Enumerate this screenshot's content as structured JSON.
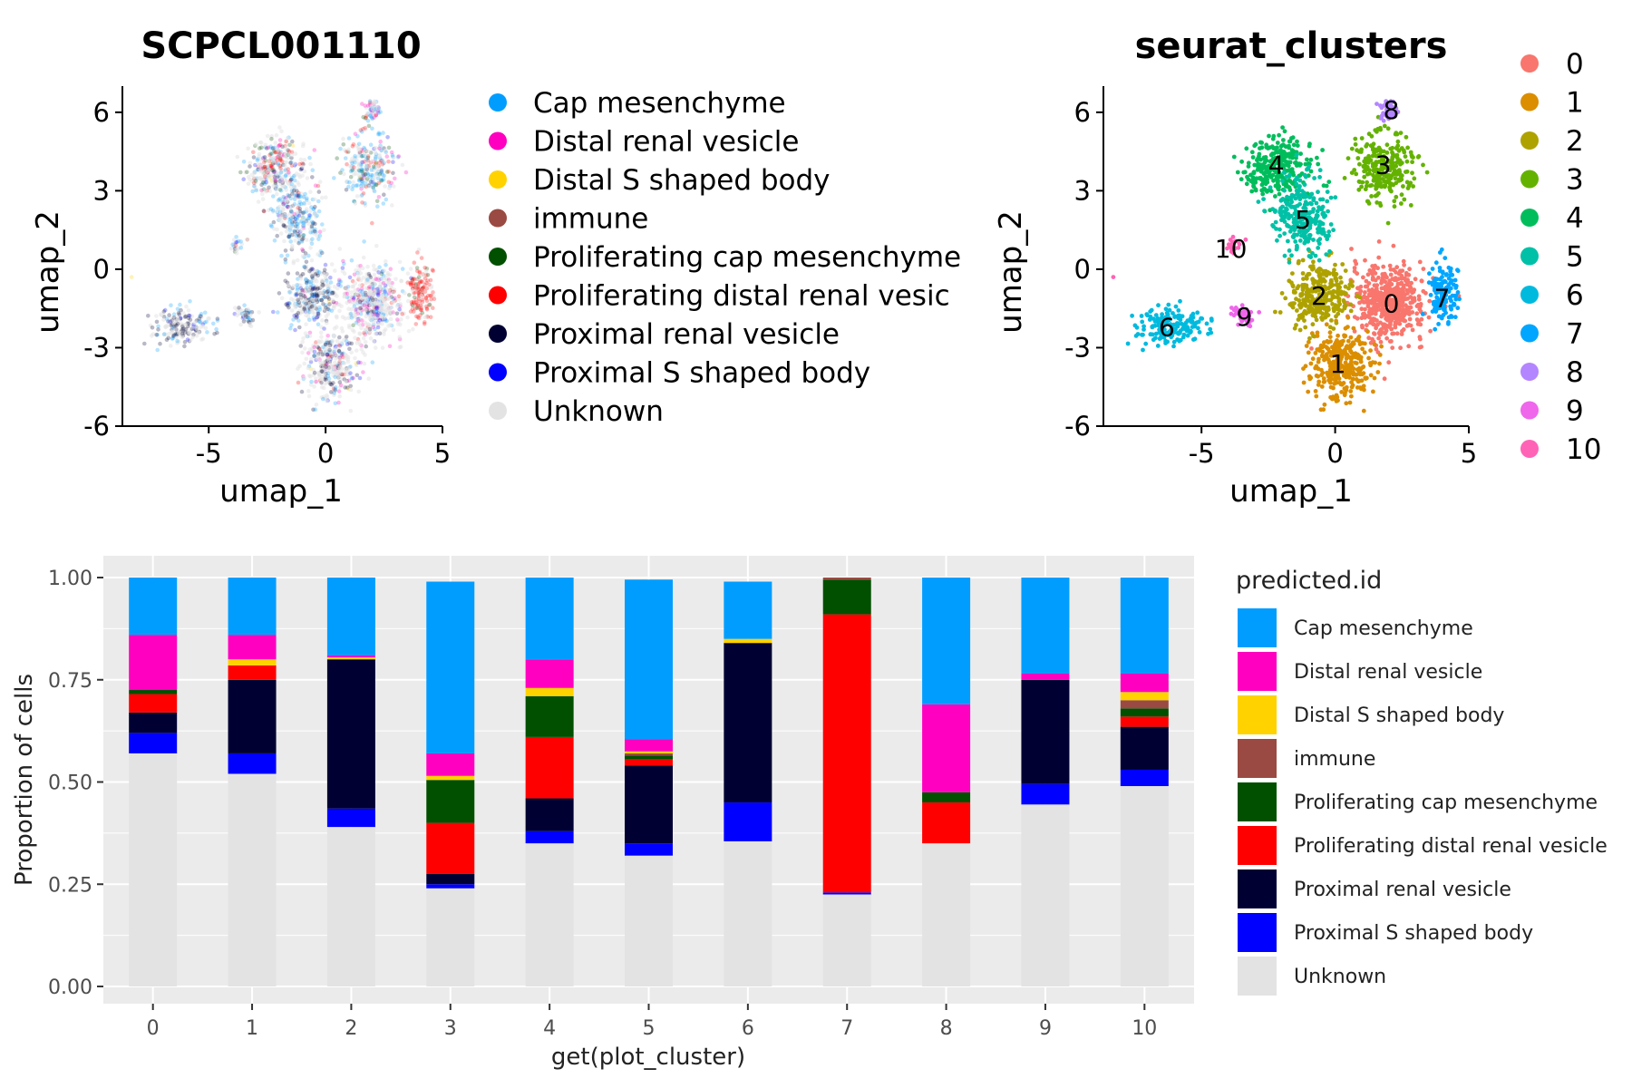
{
  "colors": {
    "Cap mesenchyme": "#009dff",
    "Distal renal vesicle": "#ff00c0",
    "Distal S shaped body": "#ffd200",
    "immune": "#9a4a42",
    "Proliferating cap mesenchyme": "#005000",
    "Proliferating distal renal vesicle": "#ff0000",
    "Proximal renal vesicle": "#000033",
    "Proximal S shaped body": "#0000ff",
    "Unknown": "#e3e3e3"
  },
  "cluster_colors": [
    "#f8766d",
    "#db8e00",
    "#aea200",
    "#64b200",
    "#00bd5c",
    "#00c1a7",
    "#00bade",
    "#00a6ff",
    "#b385ff",
    "#ef67eb",
    "#ff63b6"
  ],
  "chart_data": [
    {
      "type": "scatter",
      "title": "SCPCL001110",
      "xlabel": "umap_1",
      "ylabel": "umap_2",
      "x_ticks": [
        "-5",
        "0",
        "5"
      ],
      "y_ticks": [
        "6",
        "3",
        "0",
        "-3",
        "-6"
      ],
      "xlim": [
        -8.5,
        5
      ],
      "ylim": [
        -6,
        7
      ],
      "legend_position": "right",
      "legend": [
        "Cap mesenchyme",
        "Distal renal vesicle",
        "Distal S shaped body",
        "immune",
        "Proliferating cap mesenchyme",
        "Proliferating distal renal vesicle",
        "Proximal renal vesicle",
        "Proximal S shaped body",
        "Unknown"
      ],
      "legend_display": [
        "Cap mesenchyme",
        "Distal renal vesicle",
        "Distal S shaped body",
        "immune",
        "Proliferating cap mesenchyme",
        "Proliferating distal renal vesic",
        "Proximal renal vesicle",
        "Proximal S shaped body",
        "Unknown"
      ]
    },
    {
      "type": "scatter",
      "title": "seurat_clusters",
      "xlabel": "umap_1",
      "ylabel": "umap_2",
      "x_ticks": [
        "-5",
        "0",
        "5"
      ],
      "y_ticks": [
        "6",
        "3",
        "0",
        "-3",
        "-6"
      ],
      "xlim": [
        -8.5,
        5
      ],
      "ylim": [
        -6,
        7
      ],
      "legend_position": "right",
      "legend": [
        "0",
        "1",
        "2",
        "3",
        "4",
        "5",
        "6",
        "7",
        "8",
        "9",
        "10"
      ],
      "cluster_labels": [
        {
          "label": "0",
          "x": 2.1,
          "y": -1.3
        },
        {
          "label": "1",
          "x": 0.1,
          "y": -3.6
        },
        {
          "label": "2",
          "x": -0.6,
          "y": -1.0
        },
        {
          "label": "3",
          "x": 1.8,
          "y": 4.0
        },
        {
          "label": "4",
          "x": -2.2,
          "y": 4.0
        },
        {
          "label": "5",
          "x": -1.2,
          "y": 1.9
        },
        {
          "label": "6",
          "x": -6.3,
          "y": -2.2
        },
        {
          "label": "7",
          "x": 4.0,
          "y": -1.1
        },
        {
          "label": "8",
          "x": 2.1,
          "y": 6.1
        },
        {
          "label": "9",
          "x": -3.4,
          "y": -1.8
        },
        {
          "label": "10",
          "x": -3.9,
          "y": 0.8
        }
      ],
      "clusters": [
        {
          "id": 0,
          "cx": 2.0,
          "cy": -1.3,
          "sx": 0.9,
          "sy": 0.95,
          "n": 520
        },
        {
          "id": 1,
          "cx": 0.2,
          "cy": -3.6,
          "sx": 0.75,
          "sy": 0.9,
          "n": 320
        },
        {
          "id": 2,
          "cx": -0.6,
          "cy": -1.0,
          "sx": 0.75,
          "sy": 0.75,
          "n": 320
        },
        {
          "id": 3,
          "cx": 1.8,
          "cy": 3.9,
          "sx": 0.75,
          "sy": 0.9,
          "n": 260
        },
        {
          "id": 4,
          "cx": -2.1,
          "cy": 3.9,
          "sx": 0.85,
          "sy": 0.75,
          "n": 300
        },
        {
          "id": 5,
          "cx": -1.2,
          "cy": 2.0,
          "sx": 0.7,
          "sy": 0.95,
          "n": 260
        },
        {
          "id": 6,
          "cx": -6.2,
          "cy": -2.2,
          "sx": 0.9,
          "sy": 0.45,
          "n": 170
        },
        {
          "id": 7,
          "cx": 4.0,
          "cy": -1.0,
          "sx": 0.35,
          "sy": 0.85,
          "n": 140
        },
        {
          "id": 8,
          "cx": 2.0,
          "cy": 6.1,
          "sx": 0.2,
          "sy": 0.25,
          "n": 60
        },
        {
          "id": 9,
          "cx": -3.4,
          "cy": -1.8,
          "sx": 0.3,
          "sy": 0.3,
          "n": 50
        },
        {
          "id": 10,
          "cx": -3.8,
          "cy": 0.9,
          "sx": 0.2,
          "sy": 0.25,
          "n": 20
        }
      ],
      "outlier_point": {
        "x": -8.3,
        "y": -0.3
      }
    },
    {
      "type": "bar",
      "stacked": true,
      "xlabel": "get(plot_cluster)",
      "ylabel": "Proportion of cells",
      "categories": [
        "0",
        "1",
        "2",
        "3",
        "4",
        "5",
        "6",
        "7",
        "8",
        "9",
        "10"
      ],
      "y_ticks": [
        "0.00",
        "0.25",
        "0.50",
        "0.75",
        "1.00"
      ],
      "ylim": [
        0,
        1
      ],
      "legend_title": "predicted.id",
      "legend_position": "right",
      "series": [
        {
          "name": "Unknown",
          "values": [
            0.57,
            0.52,
            0.39,
            0.24,
            0.35,
            0.32,
            0.355,
            0.225,
            0.35,
            0.445,
            0.49
          ]
        },
        {
          "name": "Proximal S shaped body",
          "values": [
            0.05,
            0.05,
            0.045,
            0.01,
            0.03,
            0.03,
            0.095,
            0.005,
            0.0,
            0.05,
            0.04
          ]
        },
        {
          "name": "Proximal renal vesicle",
          "values": [
            0.05,
            0.18,
            0.365,
            0.025,
            0.08,
            0.19,
            0.39,
            0.0,
            0.0,
            0.255,
            0.105
          ]
        },
        {
          "name": "Proliferating distal renal vesicle",
          "values": [
            0.045,
            0.035,
            0.0,
            0.125,
            0.15,
            0.015,
            0.0,
            0.68,
            0.1,
            0.0,
            0.025
          ]
        },
        {
          "name": "Proliferating cap mesenchyme",
          "values": [
            0.01,
            0.0,
            0.0,
            0.105,
            0.1,
            0.01,
            0.0,
            0.085,
            0.025,
            0.0,
            0.02
          ]
        },
        {
          "name": "immune",
          "values": [
            0.0,
            0.0,
            0.0,
            0.0,
            0.0,
            0.005,
            0.0,
            0.005,
            0.0,
            0.0,
            0.02
          ]
        },
        {
          "name": "Distal S shaped body",
          "values": [
            0.0,
            0.015,
            0.005,
            0.01,
            0.02,
            0.005,
            0.01,
            0.0,
            0.0,
            0.0,
            0.02
          ]
        },
        {
          "name": "Distal renal vesicle",
          "values": [
            0.135,
            0.06,
            0.005,
            0.055,
            0.07,
            0.03,
            0.0,
            0.0,
            0.215,
            0.015,
            0.045
          ]
        },
        {
          "name": "Cap mesenchyme",
          "values": [
            0.14,
            0.14,
            0.19,
            0.42,
            0.2,
            0.39,
            0.14,
            0.0,
            0.31,
            0.235,
            0.235
          ]
        }
      ],
      "legend": [
        "Cap mesenchyme",
        "Distal renal vesicle",
        "Distal S shaped body",
        "immune",
        "Proliferating cap mesenchyme",
        "Proliferating distal renal vesicle",
        "Proximal renal vesicle",
        "Proximal S shaped body",
        "Unknown"
      ],
      "legend_display": [
        "Cap mesenchyme",
        "Distal renal vesicle",
        "Distal S shaped body",
        "immune",
        "Proliferating cap mesenchyme",
        "Proliferating distal renal vesicle",
        "Proximal renal vesicle",
        "Proximal S shaped body",
        "Unknown"
      ]
    }
  ]
}
